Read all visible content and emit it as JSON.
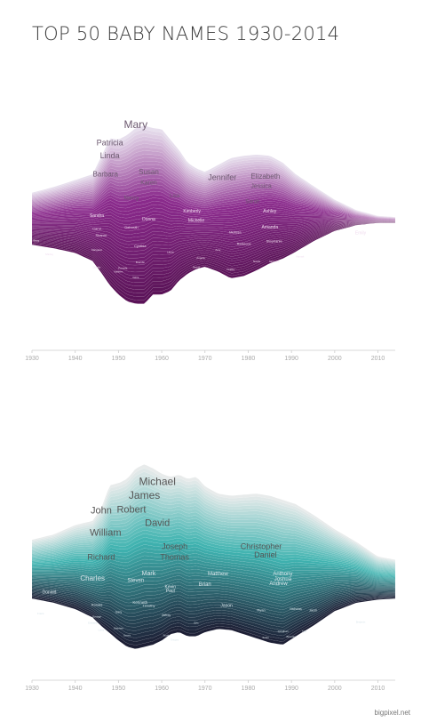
{
  "title": "TOP 50 BABY NAMES 1930-2014",
  "credit": "bigpixel.net",
  "colors": {
    "girls_light": "#e9e3ef",
    "girls_dark": "#5a1357",
    "girls_mid": "#8a2a8c",
    "boys_light": "#ececec",
    "boys_mid": "#3fb3b0",
    "boys_dark": "#1c1c33"
  },
  "chart_data": [
    {
      "type": "area",
      "subtype": "streamgraph",
      "series_group": "girls",
      "x_ticks": [
        "1930",
        "1940",
        "1950",
        "1960",
        "1970",
        "1980",
        "1990",
        "2000",
        "2010"
      ],
      "xlim": [
        1930,
        2014
      ],
      "top_envelope": {
        "years": [
          1930,
          1935,
          1940,
          1944,
          1946,
          1948,
          1950,
          1952,
          1954,
          1956,
          1958,
          1960,
          1962,
          1964,
          1966,
          1968,
          1970,
          1973,
          1976,
          1979,
          1982,
          1985,
          1988,
          1991,
          1995,
          2000,
          2005,
          2010,
          2014
        ],
        "values": [
          0.24,
          0.29,
          0.35,
          0.4,
          0.55,
          0.71,
          0.7,
          0.74,
          0.8,
          0.82,
          0.8,
          0.79,
          0.7,
          0.61,
          0.5,
          0.45,
          0.42,
          0.48,
          0.54,
          0.56,
          0.57,
          0.56,
          0.5,
          0.4,
          0.3,
          0.18,
          0.09,
          0.04,
          0.03
        ]
      },
      "bottom_envelope": {
        "years": [
          1930,
          1935,
          1940,
          1944,
          1946,
          1948,
          1950,
          1952,
          1954,
          1956,
          1958,
          1960,
          1962,
          1964,
          1966,
          1968,
          1970,
          1973,
          1976,
          1979,
          1982,
          1985,
          1988,
          1991,
          1995,
          2000,
          2005,
          2010,
          2014
        ],
        "values": [
          -0.21,
          -0.24,
          -0.28,
          -0.35,
          -0.45,
          -0.56,
          -0.64,
          -0.7,
          -0.72,
          -0.72,
          -0.64,
          -0.64,
          -0.61,
          -0.52,
          -0.46,
          -0.42,
          -0.4,
          -0.44,
          -0.5,
          -0.48,
          -0.43,
          -0.37,
          -0.33,
          -0.27,
          -0.18,
          -0.09,
          -0.04,
          -0.02,
          -0.02
        ]
      },
      "names": [
        {
          "name": "Mary",
          "year": 1954,
          "level": 0.8,
          "size": 12
        },
        {
          "name": "Patricia",
          "year": 1948,
          "level": 0.65,
          "size": 9
        },
        {
          "name": "Linda",
          "year": 1948,
          "level": 0.54,
          "size": 9
        },
        {
          "name": "Barbara",
          "year": 1947,
          "level": 0.38,
          "size": 8
        },
        {
          "name": "Susan",
          "year": 1957,
          "level": 0.4,
          "size": 8
        },
        {
          "name": "Karen",
          "year": 1957,
          "level": 0.31,
          "size": 7
        },
        {
          "name": "Jennifer",
          "year": 1974,
          "level": 0.35,
          "size": 9
        },
        {
          "name": "Elizabeth",
          "year": 1984,
          "level": 0.36,
          "size": 8
        },
        {
          "name": "Jessica",
          "year": 1983,
          "level": 0.28,
          "size": 7
        },
        {
          "name": "Nancy",
          "year": 1953,
          "level": 0.18,
          "size": 6
        },
        {
          "name": "Lisa",
          "year": 1963,
          "level": 0.2,
          "size": 6
        },
        {
          "name": "Sarah",
          "year": 1981,
          "level": 0.15,
          "size": 6
        },
        {
          "name": "Kimberly",
          "year": 1967,
          "level": 0.07,
          "size": 5
        },
        {
          "name": "Ashley",
          "year": 1985,
          "level": 0.07,
          "size": 5
        },
        {
          "name": "Sandra",
          "year": 1945,
          "level": 0.03,
          "size": 5
        },
        {
          "name": "Donna",
          "year": 1957,
          "level": 0.0,
          "size": 5
        },
        {
          "name": "Michelle",
          "year": 1968,
          "level": -0.01,
          "size": 5
        },
        {
          "name": "Carol",
          "year": 1945,
          "level": -0.08,
          "size": 4
        },
        {
          "name": "Deborah",
          "year": 1953,
          "level": -0.07,
          "size": 4
        },
        {
          "name": "Amanda",
          "year": 1985,
          "level": -0.07,
          "size": 5
        },
        {
          "name": "Melissa",
          "year": 1977,
          "level": -0.11,
          "size": 4
        },
        {
          "name": "Emily",
          "year": 2006,
          "level": -0.12,
          "size": 5
        },
        {
          "name": "Sharon",
          "year": 1946,
          "level": -0.14,
          "size": 4
        },
        {
          "name": "Betty",
          "year": 1931,
          "level": -0.18,
          "size": 3
        },
        {
          "name": "Stephanie",
          "year": 1986,
          "level": -0.19,
          "size": 4
        },
        {
          "name": "Rebecca",
          "year": 1979,
          "level": -0.21,
          "size": 4
        },
        {
          "name": "Cynthia",
          "year": 1955,
          "level": -0.23,
          "size": 4
        },
        {
          "name": "Margaret",
          "year": 1945,
          "level": -0.26,
          "size": 3
        },
        {
          "name": "Laura",
          "year": 1962,
          "level": -0.28,
          "size": 3
        },
        {
          "name": "Amy",
          "year": 1973,
          "level": -0.26,
          "size": 3
        },
        {
          "name": "Shirley",
          "year": 1934,
          "level": -0.3,
          "size": 3
        },
        {
          "name": "Angela",
          "year": 1969,
          "level": -0.33,
          "size": 3
        },
        {
          "name": "Nicole",
          "year": 1982,
          "level": -0.36,
          "size": 3
        },
        {
          "name": "Samantha",
          "year": 1986,
          "level": -0.36,
          "size": 2.5
        },
        {
          "name": "Brenda",
          "year": 1955,
          "level": -0.37,
          "size": 3
        },
        {
          "name": "Hannah",
          "year": 1992,
          "level": -0.32,
          "size": 2.5
        },
        {
          "name": "Pamela",
          "year": 1951,
          "level": -0.42,
          "size": 3
        },
        {
          "name": "Rachel",
          "year": 1968,
          "level": -0.41,
          "size": 2.5
        },
        {
          "name": "Heather",
          "year": 1976,
          "level": -0.43,
          "size": 2.5
        },
        {
          "name": "Dorothy",
          "year": 1945,
          "level": -0.41,
          "size": 2.5
        },
        {
          "name": "Debra",
          "year": 1954,
          "level": -0.5,
          "size": 2.5
        },
        {
          "name": "Kathleen",
          "year": 1950,
          "level": -0.45,
          "size": 2.5
        }
      ]
    },
    {
      "type": "area",
      "subtype": "streamgraph",
      "series_group": "boys",
      "x_ticks": [
        "1930",
        "1940",
        "1950",
        "1960",
        "1970",
        "1980",
        "1990",
        "2000",
        "2010"
      ],
      "xlim": [
        1930,
        2014
      ],
      "top_envelope": {
        "years": [
          1930,
          1935,
          1940,
          1944,
          1946,
          1948,
          1950,
          1952,
          1954,
          1956,
          1958,
          1960,
          1962,
          1964,
          1966,
          1968,
          1970,
          1973,
          1976,
          1979,
          1982,
          1985,
          1988,
          1991,
          1995,
          2000,
          2005,
          2010,
          2014
        ],
        "values": [
          0.44,
          0.49,
          0.58,
          0.62,
          0.74,
          0.96,
          0.98,
          1.02,
          1.12,
          1.16,
          1.12,
          1.07,
          1.04,
          1.06,
          1.02,
          1.04,
          0.95,
          0.88,
          0.86,
          0.87,
          0.88,
          0.86,
          0.82,
          0.78,
          0.68,
          0.54,
          0.42,
          0.28,
          0.25
        ]
      },
      "bottom_envelope": {
        "years": [
          1930,
          1935,
          1940,
          1944,
          1946,
          1948,
          1950,
          1952,
          1954,
          1956,
          1958,
          1960,
          1962,
          1964,
          1966,
          1968,
          1970,
          1973,
          1976,
          1979,
          1982,
          1985,
          1988,
          1991,
          1995,
          2000,
          2005,
          2010,
          2014
        ],
        "values": [
          -0.12,
          -0.16,
          -0.22,
          -0.3,
          -0.38,
          -0.45,
          -0.52,
          -0.58,
          -0.6,
          -0.58,
          -0.56,
          -0.52,
          -0.46,
          -0.44,
          -0.48,
          -0.48,
          -0.44,
          -0.41,
          -0.42,
          -0.46,
          -0.5,
          -0.54,
          -0.56,
          -0.48,
          -0.38,
          -0.24,
          -0.16,
          -0.13,
          -0.12
        ]
      },
      "names": [
        {
          "name": "Michael",
          "year": 1959,
          "level": 0.96,
          "size": 12
        },
        {
          "name": "James",
          "year": 1956,
          "level": 0.83,
          "size": 12
        },
        {
          "name": "John",
          "year": 1946,
          "level": 0.69,
          "size": 11
        },
        {
          "name": "Robert",
          "year": 1953,
          "level": 0.7,
          "size": 11
        },
        {
          "name": "David",
          "year": 1959,
          "level": 0.57,
          "size": 11
        },
        {
          "name": "William",
          "year": 1947,
          "level": 0.48,
          "size": 11
        },
        {
          "name": "Joseph",
          "year": 1963,
          "level": 0.35,
          "size": 9
        },
        {
          "name": "Christopher",
          "year": 1983,
          "level": 0.35,
          "size": 9
        },
        {
          "name": "Richard",
          "year": 1946,
          "level": 0.25,
          "size": 9
        },
        {
          "name": "Thomas",
          "year": 1963,
          "level": 0.25,
          "size": 9
        },
        {
          "name": "Daniel",
          "year": 1984,
          "level": 0.27,
          "size": 9
        },
        {
          "name": "Mark",
          "year": 1957,
          "level": 0.1,
          "size": 7
        },
        {
          "name": "Matthew",
          "year": 1973,
          "level": 0.1,
          "size": 6
        },
        {
          "name": "Anthony",
          "year": 1988,
          "level": 0.1,
          "size": 6
        },
        {
          "name": "Charles",
          "year": 1944,
          "level": 0.05,
          "size": 8
        },
        {
          "name": "Steven",
          "year": 1954,
          "level": 0.04,
          "size": 6
        },
        {
          "name": "Joshua",
          "year": 1988,
          "level": 0.05,
          "size": 6
        },
        {
          "name": "Andrew",
          "year": 1987,
          "level": 0.01,
          "size": 6
        },
        {
          "name": "Brian",
          "year": 1970,
          "level": 0.0,
          "size": 6
        },
        {
          "name": "Kevin",
          "year": 1962,
          "level": -0.02,
          "size": 5
        },
        {
          "name": "Paul",
          "year": 1962,
          "level": -0.06,
          "size": 5
        },
        {
          "name": "Donald",
          "year": 1934,
          "level": -0.07,
          "size": 5
        },
        {
          "name": "Kenneth",
          "year": 1955,
          "level": -0.17,
          "size": 4.5
        },
        {
          "name": "Ronald",
          "year": 1945,
          "level": -0.19,
          "size": 4
        },
        {
          "name": "Timothy",
          "year": 1957,
          "level": -0.2,
          "size": 4
        },
        {
          "name": "Jason",
          "year": 1975,
          "level": -0.2,
          "size": 5
        },
        {
          "name": "Ryan",
          "year": 1983,
          "level": -0.24,
          "size": 4
        },
        {
          "name": "Nicholas",
          "year": 1991,
          "level": -0.23,
          "size": 3.5
        },
        {
          "name": "Jacob",
          "year": 1995,
          "level": -0.24,
          "size": 3.5
        },
        {
          "name": "Gary",
          "year": 1950,
          "level": -0.26,
          "size": 3.5
        },
        {
          "name": "Jeffrey",
          "year": 1961,
          "level": -0.29,
          "size": 3.5
        },
        {
          "name": "George",
          "year": 1945,
          "level": -0.3,
          "size": 3
        },
        {
          "name": "Edward",
          "year": 1944,
          "level": -0.36,
          "size": 3
        },
        {
          "name": "Eric",
          "year": 1968,
          "level": -0.36,
          "size": 3
        },
        {
          "name": "Larry",
          "year": 1946,
          "level": -0.43,
          "size": 3
        },
        {
          "name": "Stephen",
          "year": 1950,
          "level": -0.41,
          "size": 3
        },
        {
          "name": "Frank",
          "year": 1932,
          "level": -0.27,
          "size": 3
        },
        {
          "name": "Scott",
          "year": 1961,
          "level": -0.48,
          "size": 3
        },
        {
          "name": "Jonathan",
          "year": 1988,
          "level": -0.44,
          "size": 3
        },
        {
          "name": "Justin",
          "year": 1984,
          "level": -0.5,
          "size": 3
        },
        {
          "name": "Brandon",
          "year": 1990,
          "level": -0.49,
          "size": 3
        },
        {
          "name": "Gregory",
          "year": 1963,
          "level": -0.52,
          "size": 2.5
        },
        {
          "name": "Tyler",
          "year": 1993,
          "level": -0.44,
          "size": 2.5
        },
        {
          "name": "Dennis",
          "year": 1952,
          "level": -0.48,
          "size": 2.5
        },
        {
          "name": "Benjamin",
          "year": 2006,
          "level": -0.35,
          "size": 2.5
        }
      ]
    }
  ]
}
